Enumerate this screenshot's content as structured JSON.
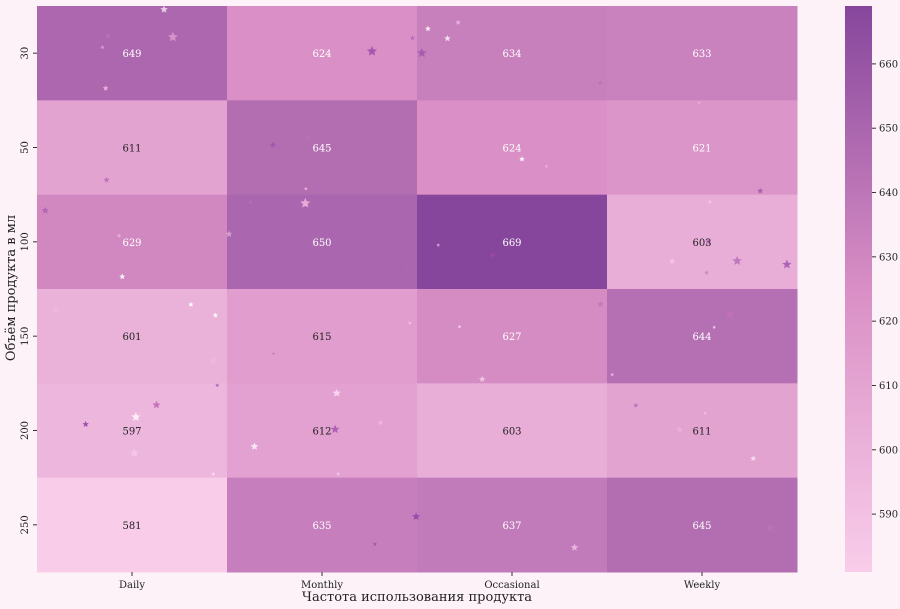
{
  "chart_data": {
    "type": "heatmap",
    "title": "",
    "xlabel": "Частота использования продукта",
    "ylabel": "Объём продукта в мл",
    "x_categories": [
      "Daily",
      "Monthly",
      "Occasional",
      "Weekly"
    ],
    "y_categories": [
      "30",
      "50",
      "100",
      "150",
      "200",
      "250"
    ],
    "values": [
      [
        649,
        624,
        634,
        633
      ],
      [
        611,
        645,
        624,
        621
      ],
      [
        629,
        650,
        669,
        603
      ],
      [
        601,
        615,
        627,
        644
      ],
      [
        597,
        612,
        603,
        611
      ],
      [
        581,
        635,
        637,
        645
      ]
    ],
    "colorbar": {
      "ticks": [
        590,
        600,
        610,
        620,
        630,
        640,
        650,
        660
      ],
      "min": 581,
      "max": 669
    },
    "colors": {
      "low": "#f9cdea",
      "mid": "#d98fc5",
      "high": "#86469c",
      "background": "#fdf2f8"
    }
  }
}
